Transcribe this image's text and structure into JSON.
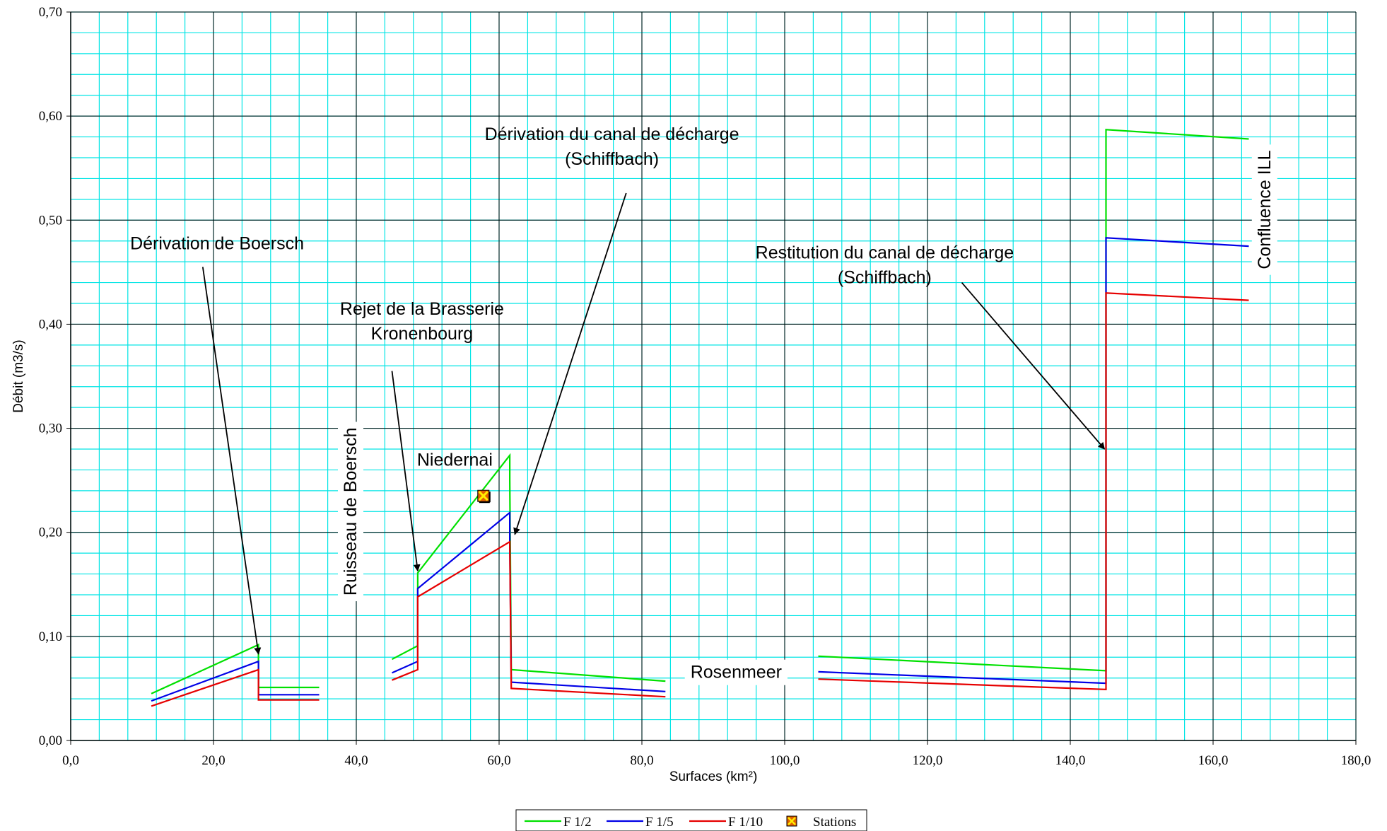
{
  "chart_data": {
    "type": "line",
    "title": "",
    "xlabel": "Surfaces (km²)",
    "ylabel": "Débit (m3/s)",
    "xlim": [
      0,
      180
    ],
    "ylim": [
      0,
      0.7
    ],
    "x_ticks": [
      0,
      20,
      40,
      60,
      80,
      100,
      120,
      140,
      160,
      180
    ],
    "x_tick_labels": [
      "0,0",
      "20,0",
      "40,0",
      "60,0",
      "80,0",
      "100,0",
      "120,0",
      "140,0",
      "160,0",
      "180,0"
    ],
    "y_ticks": [
      0,
      0.1,
      0.2,
      0.3,
      0.4,
      0.5,
      0.6,
      0.7
    ],
    "y_tick_labels": [
      "0,00",
      "0,10",
      "0,20",
      "0,30",
      "0,40",
      "0,50",
      "0,60",
      "0,70"
    ],
    "grid": {
      "major": true,
      "minor": true,
      "major_color": "#000000",
      "minor_color": "#00e5e5",
      "minor_x_step": 4,
      "minor_y_step": 0.02
    },
    "legend_position": "bottom-center",
    "series": [
      {
        "name": "F 1/2",
        "color": "#00e000",
        "segments": [
          [
            [
              11.3,
              0.045
            ],
            [
              26.3,
              0.092
            ],
            [
              26.3,
              0.051
            ],
            [
              34.8,
              0.051
            ]
          ],
          [
            [
              45.0,
              0.078
            ],
            [
              48.6,
              0.091
            ],
            [
              48.6,
              0.161
            ],
            [
              61.5,
              0.274
            ],
            [
              61.5,
              0.25
            ],
            [
              61.7,
              0.068
            ],
            [
              83.3,
              0.057
            ]
          ],
          [
            [
              104.7,
              0.081
            ],
            [
              145.0,
              0.067
            ],
            [
              145.0,
              0.587
            ],
            [
              165.0,
              0.578
            ]
          ]
        ]
      },
      {
        "name": "F 1/5",
        "color": "#0000e6",
        "segments": [
          [
            [
              11.3,
              0.038
            ],
            [
              26.3,
              0.076
            ],
            [
              26.3,
              0.044
            ],
            [
              34.8,
              0.044
            ]
          ],
          [
            [
              45.0,
              0.065
            ],
            [
              48.6,
              0.076
            ],
            [
              48.6,
              0.146
            ],
            [
              61.5,
              0.219
            ],
            [
              61.5,
              0.19
            ],
            [
              61.7,
              0.056
            ],
            [
              83.3,
              0.047
            ]
          ],
          [
            [
              104.7,
              0.066
            ],
            [
              145.0,
              0.055
            ],
            [
              145.0,
              0.483
            ],
            [
              165.0,
              0.475
            ]
          ]
        ]
      },
      {
        "name": "F 1/10",
        "color": "#e60000",
        "segments": [
          [
            [
              11.3,
              0.033
            ],
            [
              26.3,
              0.068
            ],
            [
              26.3,
              0.039
            ],
            [
              34.8,
              0.039
            ]
          ],
          [
            [
              45.0,
              0.058
            ],
            [
              48.6,
              0.068
            ],
            [
              48.6,
              0.138
            ],
            [
              61.5,
              0.191
            ],
            [
              61.7,
              0.05
            ],
            [
              83.3,
              0.042
            ]
          ],
          [
            [
              104.7,
              0.059
            ],
            [
              145.0,
              0.049
            ],
            [
              145.0,
              0.43
            ],
            [
              165.0,
              0.423
            ]
          ]
        ]
      }
    ],
    "stations": {
      "name": "Stations",
      "points": [
        {
          "x": 57.8,
          "y": 0.235,
          "label": "Niedernai"
        }
      ]
    },
    "annotations": [
      {
        "lines": [
          "Dérivation de Boersch"
        ],
        "x": 20.5,
        "y": 0.472,
        "arrow_from": [
          18.5,
          0.455
        ],
        "arrow_to": [
          26.3,
          0.083
        ]
      },
      {
        "lines": [
          "Rejet de la Brasserie",
          "Kronenbourg"
        ],
        "x": 49.2,
        "y": 0.409,
        "arrow_from": [
          45.0,
          0.355
        ],
        "arrow_to": [
          48.6,
          0.163
        ]
      },
      {
        "lines": [
          "Dérivation du canal de décharge",
          "(Schiffbach)"
        ],
        "x": 75.8,
        "y": 0.577,
        "arrow_from": [
          77.8,
          0.526
        ],
        "arrow_to": [
          62.2,
          0.198
        ]
      },
      {
        "lines": [
          "Restitution du canal de décharge",
          "(Schiffbach)"
        ],
        "x": 114.0,
        "y": 0.463,
        "arrow_from": [
          124.8,
          0.44
        ],
        "arrow_to": [
          144.8,
          0.28
        ]
      },
      {
        "lines": [
          "Ruisseau de Boersch"
        ],
        "x": 40.0,
        "y": 0.22,
        "rotate": -90,
        "boxed": true
      },
      {
        "lines": [
          "Niedernai"
        ],
        "x": 53.8,
        "y": 0.264
      },
      {
        "lines": [
          "Rosenmeer"
        ],
        "x": 93.2,
        "y": 0.06,
        "boxed": true
      },
      {
        "lines": [
          "Confluence ILL"
        ],
        "x": 168.0,
        "y": 0.51,
        "rotate": -90,
        "boxed": true
      }
    ]
  }
}
